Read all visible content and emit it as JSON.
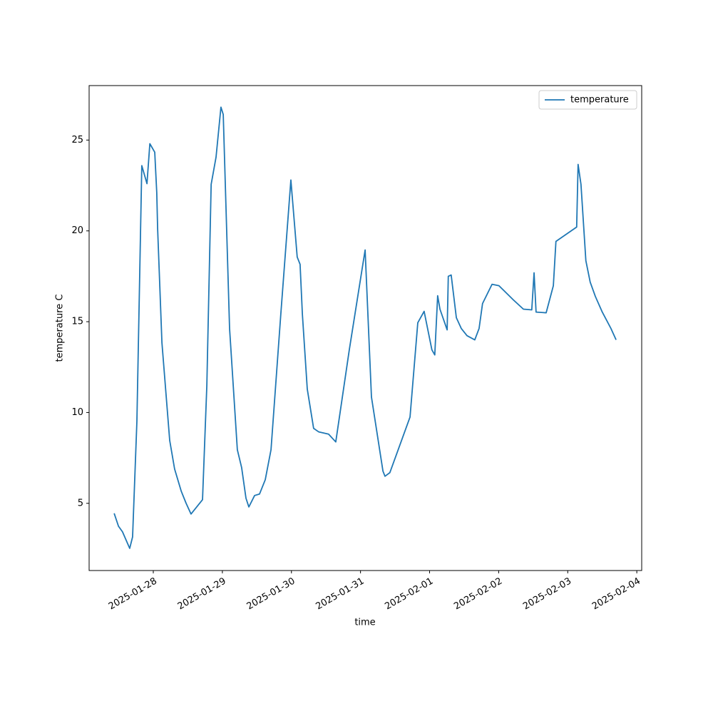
{
  "chart_data": {
    "type": "line",
    "x_label": "time",
    "y_label": "temperature C",
    "x": [
      "2025-01-27T10:24",
      "2025-01-27T11:54",
      "2025-01-27T13:18",
      "2025-01-27T15:48",
      "2025-01-27T16:48",
      "2025-01-27T18:18",
      "2025-01-27T20:00",
      "2025-01-27T21:48",
      "2025-01-27T22:48",
      "2025-01-28T00:30",
      "2025-01-28T01:12",
      "2025-01-28T01:30",
      "2025-01-28T03:00",
      "2025-01-28T05:42",
      "2025-01-28T07:24",
      "2025-01-28T09:42",
      "2025-01-28T11:24",
      "2025-01-28T13:06",
      "2025-01-28T17:06",
      "2025-01-28T18:36",
      "2025-01-28T20:06",
      "2025-01-28T21:48",
      "2025-01-28T23:30",
      "2025-01-29T00:18",
      "2025-01-29T02:30",
      "2025-01-29T05:12",
      "2025-01-29T06:42",
      "2025-01-29T08:12",
      "2025-01-29T09:12",
      "2025-01-29T11:12",
      "2025-01-29T12:54",
      "2025-01-29T14:54",
      "2025-01-29T16:54",
      "2025-01-29T20:18",
      "2025-01-29T23:48",
      "2025-01-30T02:00",
      "2025-01-30T03:00",
      "2025-01-30T03:48",
      "2025-01-30T05:30",
      "2025-01-30T07:42",
      "2025-01-30T09:30",
      "2025-01-30T12:54",
      "2025-01-30T15:24",
      "2025-01-30T20:06",
      "2025-01-31T01:36",
      "2025-01-31T03:48",
      "2025-01-31T07:48",
      "2025-01-31T08:30",
      "2025-01-31T10:12",
      "2025-01-31T17:12",
      "2025-01-31T19:54",
      "2025-01-31T22:06",
      "2025-02-01T00:48",
      "2025-02-01T01:48",
      "2025-02-01T02:48",
      "2025-02-01T03:36",
      "2025-02-01T06:06",
      "2025-02-01T06:30",
      "2025-02-01T07:30",
      "2025-02-01T09:18",
      "2025-02-01T11:00",
      "2025-02-01T13:00",
      "2025-02-01T15:42",
      "2025-02-01T17:12",
      "2025-02-01T18:24",
      "2025-02-01T21:42",
      "2025-02-02T00:06",
      "2025-02-02T05:06",
      "2025-02-02T08:36",
      "2025-02-02T11:30",
      "2025-02-02T12:18",
      "2025-02-02T13:00",
      "2025-02-02T16:30",
      "2025-02-02T19:00",
      "2025-02-02T19:54",
      "2025-02-03T03:06",
      "2025-02-03T03:36",
      "2025-02-03T04:36",
      "2025-02-03T06:18",
      "2025-02-03T07:48",
      "2025-02-03T09:36",
      "2025-02-03T12:00",
      "2025-02-03T15:00",
      "2025-02-03T16:48"
    ],
    "series": [
      {
        "name": "temperature",
        "color": "#1f77b4",
        "values": [
          4.45,
          3.74,
          3.43,
          2.52,
          3.15,
          9.52,
          23.59,
          22.6,
          24.8,
          24.33,
          22.1,
          20.13,
          13.84,
          8.46,
          6.89,
          5.67,
          5.0,
          4.41,
          5.2,
          11.48,
          22.56,
          24.06,
          26.81,
          26.41,
          14.63,
          7.95,
          6.96,
          5.28,
          4.8,
          5.43,
          5.51,
          6.3,
          7.95,
          15.41,
          22.8,
          18.56,
          18.16,
          15.41,
          11.29,
          9.13,
          8.93,
          8.81,
          8.38,
          13.45,
          18.95,
          10.85,
          6.77,
          6.49,
          6.69,
          9.75,
          14.94,
          15.57,
          13.45,
          13.17,
          16.43,
          15.69,
          14.55,
          17.5,
          17.57,
          15.22,
          14.63,
          14.23,
          14.0,
          14.63,
          16.0,
          17.06,
          16.98,
          16.2,
          15.69,
          15.65,
          17.69,
          15.53,
          15.49,
          16.98,
          19.42,
          20.21,
          23.66,
          22.56,
          18.36,
          17.18,
          16.39,
          15.53,
          14.63,
          14.0
        ]
      }
    ],
    "xlim": [
      "2025-01-27T01:42",
      "2025-02-04T01:42"
    ],
    "xticks": [
      "2025-01-28",
      "2025-01-29",
      "2025-01-30",
      "2025-01-31",
      "2025-02-01",
      "2025-02-02",
      "2025-02-03",
      "2025-02-04"
    ],
    "ylim": [
      1.3,
      28.0
    ],
    "yticks": [
      5,
      10,
      15,
      20,
      25
    ],
    "legend": "upper right",
    "grid": false
  }
}
